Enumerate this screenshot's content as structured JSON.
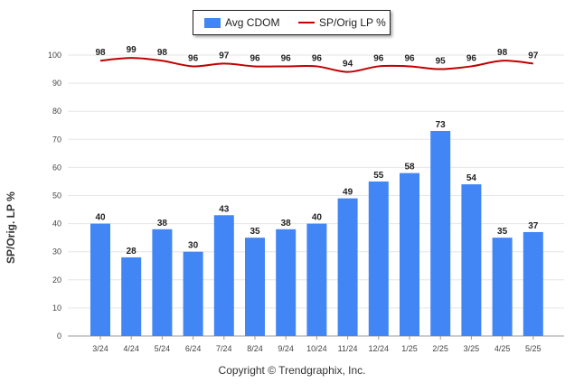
{
  "legend": {
    "bar_label": "Avg CDOM",
    "line_label": "SP/Orig LP %"
  },
  "y_axis_title": "SP/Orig. LP %",
  "footer": "Copyright © Trendgraphix, Inc.",
  "colors": {
    "bar": "#4285f4",
    "line": "#c00000",
    "grid": "#e6e6e6"
  },
  "chart_data": {
    "type": "bar",
    "categories": [
      "3/24",
      "4/24",
      "5/24",
      "6/24",
      "7/24",
      "8/24",
      "9/24",
      "10/24",
      "11/24",
      "12/24",
      "1/25",
      "2/25",
      "3/25",
      "4/25",
      "5/25"
    ],
    "series": [
      {
        "name": "Avg CDOM",
        "type": "bar",
        "values": [
          40,
          28,
          38,
          30,
          43,
          35,
          38,
          40,
          49,
          55,
          58,
          73,
          54,
          35,
          37
        ]
      },
      {
        "name": "SP/Orig LP %",
        "type": "line",
        "values": [
          98,
          99,
          98,
          96,
          97,
          96,
          96,
          96,
          94,
          96,
          96,
          95,
          96,
          98,
          97
        ]
      }
    ],
    "ylabel": "SP/Orig. LP %",
    "ylim": [
      0,
      100
    ],
    "yticks": [
      0,
      10,
      20,
      30,
      40,
      50,
      60,
      70,
      80,
      90,
      100
    ],
    "grid": true,
    "legend_position": "top-center"
  }
}
